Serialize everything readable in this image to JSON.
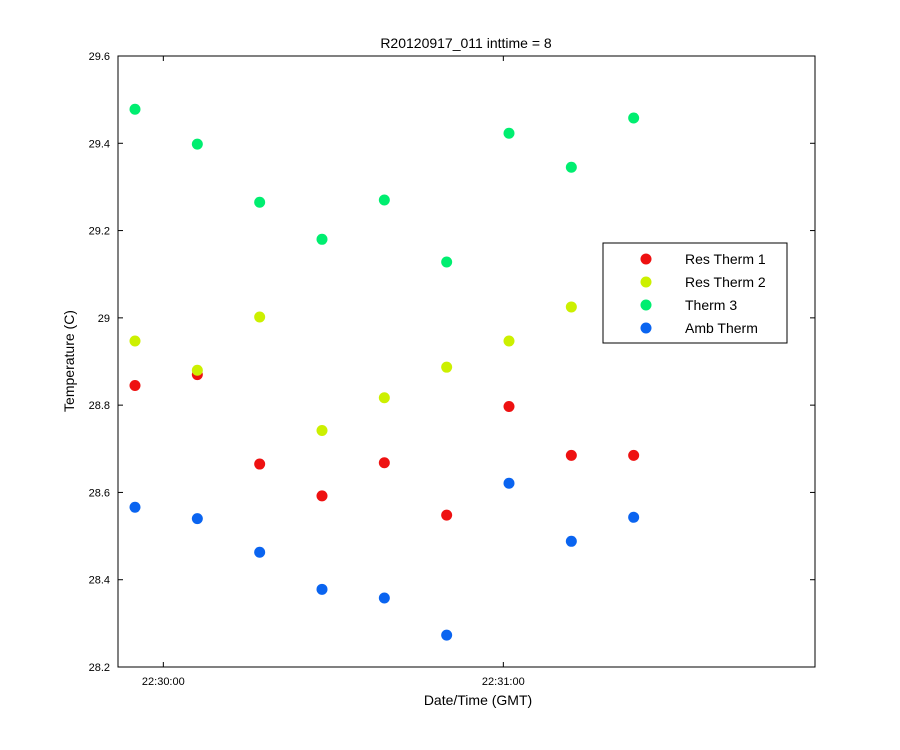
{
  "chart_data": {
    "type": "scatter",
    "title": "R20120917_011 inttime = 8",
    "xlabel": "Date/Time (GMT)",
    "ylabel": "Temperature (C)",
    "xlim": [
      "22:29:52",
      "22:31:55"
    ],
    "ylim": [
      28.2,
      29.6
    ],
    "yticks": [
      28.2,
      28.4,
      28.6,
      28.8,
      29,
      29.2,
      29.4,
      29.6
    ],
    "ytick_labels": [
      "28.2",
      "28.4",
      "28.6",
      "28.8",
      "29",
      "29.2",
      "29.4",
      "29.6"
    ],
    "xticks": [
      "22:30:00",
      "22:31:00"
    ],
    "xtick_labels": [
      "22:30:00",
      "22:31:00"
    ],
    "x": [
      "22:29:55",
      "22:30:06",
      "22:30:17",
      "22:30:28",
      "22:30:39",
      "22:30:50",
      "22:31:01",
      "22:31:12",
      "22:31:23"
    ],
    "grid": false,
    "legend_position": "right",
    "series": [
      {
        "name": "Res Therm 1",
        "color": "#ee1111",
        "values": [
          28.845,
          28.87,
          28.665,
          28.592,
          28.668,
          28.548,
          28.797,
          28.685,
          28.685
        ]
      },
      {
        "name": "Res Therm 2",
        "color": "#ccf000",
        "values": [
          28.947,
          28.88,
          29.002,
          28.742,
          28.817,
          28.887,
          28.947,
          29.025,
          null
        ]
      },
      {
        "name": "Therm 3",
        "color": "#00ee70",
        "values": [
          29.478,
          29.398,
          29.265,
          29.18,
          29.27,
          29.128,
          29.423,
          29.345,
          29.458
        ]
      },
      {
        "name": "Amb Therm",
        "color": "#0a64f0",
        "values": [
          28.566,
          28.54,
          28.463,
          28.378,
          28.358,
          28.273,
          28.621,
          28.488,
          28.543
        ]
      }
    ]
  }
}
